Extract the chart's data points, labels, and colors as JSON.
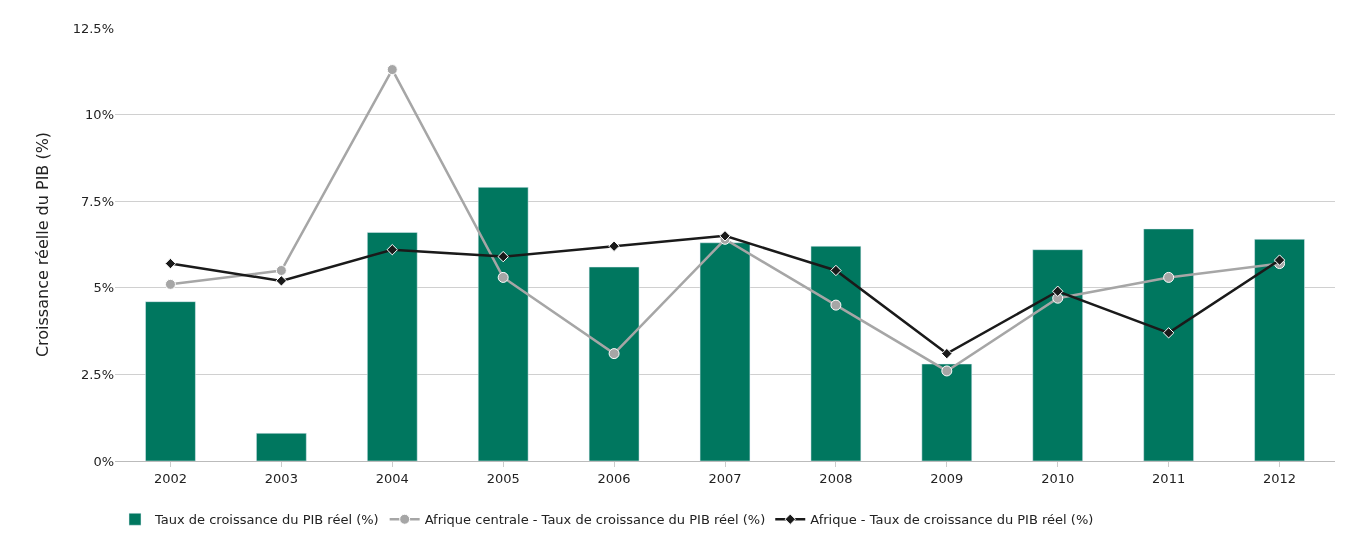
{
  "chart_data": {
    "type": "bar",
    "ylabel": "Croissance réelle du PIB (%)",
    "categories": [
      "2002",
      "2003",
      "2004",
      "2005",
      "2006",
      "2007",
      "2008",
      "2009",
      "2010",
      "2011",
      "2012"
    ],
    "series": [
      {
        "name": "Taux de croissance du PIB réel (%)",
        "color": "#00775f",
        "values": [
          4.6,
          0.8,
          6.6,
          7.9,
          5.6,
          6.3,
          6.2,
          2.8,
          6.1,
          6.7,
          6.4
        ]
      },
      {
        "name": "Afrique centrale - Taux de croissance du PIB réel (%)",
        "type": "line",
        "color": "#a6a6a6",
        "marker": "circle",
        "values": [
          5.1,
          5.5,
          11.3,
          5.3,
          3.1,
          6.4,
          4.5,
          2.6,
          4.7,
          5.3,
          5.7
        ]
      },
      {
        "name": "Afrique - Taux de croissance du PIB réel (%)",
        "type": "line",
        "color": "#1a1a1a",
        "marker": "diamond",
        "values": [
          5.7,
          5.2,
          6.1,
          5.9,
          6.2,
          6.5,
          5.5,
          3.1,
          4.9,
          3.7,
          5.8
        ]
      }
    ],
    "ylim": [
      0,
      12.5
    ],
    "yticks": [
      {
        "value": 0,
        "label": "0%"
      },
      {
        "value": 2.5,
        "label": "2.5%"
      },
      {
        "value": 5,
        "label": "5%"
      },
      {
        "value": 7.5,
        "label": "7.5%"
      },
      {
        "value": 10,
        "label": "10%"
      },
      {
        "value": 12.5,
        "label": "12.5%"
      }
    ],
    "grid": "y",
    "legend": "bottom"
  }
}
